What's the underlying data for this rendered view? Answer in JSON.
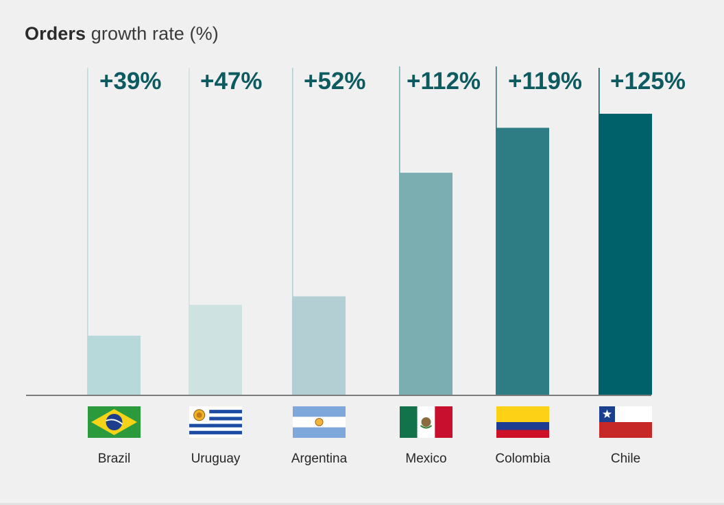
{
  "title": {
    "bold": "Orders",
    "rest": " growth rate (%)"
  },
  "chart_data": {
    "type": "bar",
    "title": "Orders growth rate (%)",
    "categories": [
      "Brazil",
      "Uruguay",
      "Argentina",
      "Mexico",
      "Colombia",
      "Chile"
    ],
    "values": [
      39,
      47,
      52,
      112,
      119,
      125
    ],
    "value_labels": [
      "+39%",
      "+47%",
      "+52%",
      "+112%",
      "+119%",
      "+125%"
    ],
    "bar_heights_relative": [
      0.21,
      0.32,
      0.35,
      0.79,
      0.95,
      1.0
    ],
    "bar_colors": [
      "#b8d9d9",
      "#cfe2e2",
      "#b4cfd3",
      "#7aaeb1",
      "#2f7d84",
      "#00616a"
    ],
    "marker_colors": [
      "#b9dcdc",
      "#cfe2e2",
      "#b4cfd3",
      "#7aaeb1",
      "#2f7d84",
      "#00616a"
    ],
    "label_color": "#0d5a60",
    "axis_color": "#7a7a7a",
    "xlabel": "",
    "ylabel": "",
    "grid": false
  },
  "flags": [
    {
      "country": "Brazil",
      "icon": "brazil-flag-icon"
    },
    {
      "country": "Uruguay",
      "icon": "uruguay-flag-icon"
    },
    {
      "country": "Argentina",
      "icon": "argentina-flag-icon"
    },
    {
      "country": "Mexico",
      "icon": "mexico-flag-icon"
    },
    {
      "country": "Colombia",
      "icon": "colombia-flag-icon"
    },
    {
      "country": "Chile",
      "icon": "chile-flag-icon"
    }
  ]
}
